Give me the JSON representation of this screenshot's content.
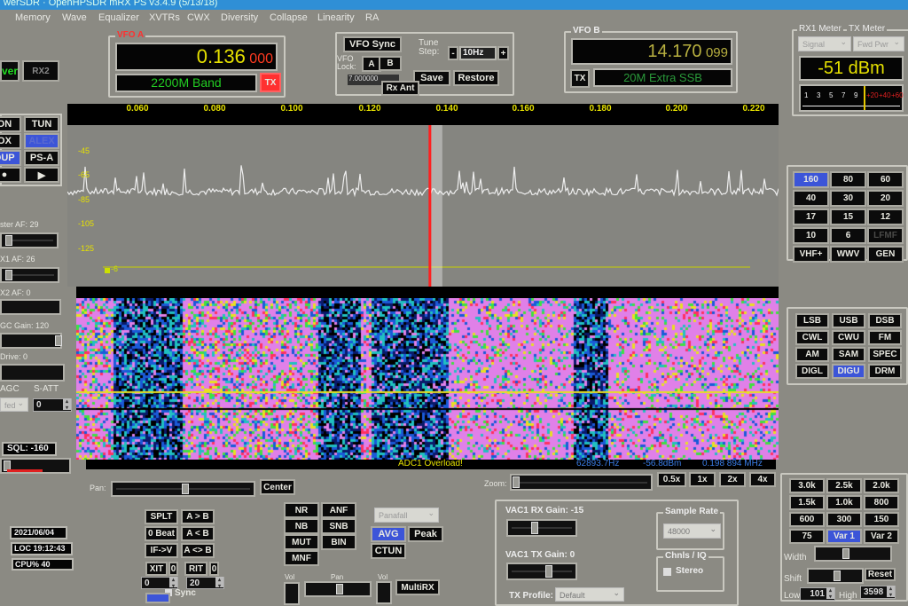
{
  "window": {
    "title": "werSDR · OpenHPSDR mRX PS v3.4.9 (5/13/18)"
  },
  "menu": [
    "Memory",
    "Wave",
    "Equalizer",
    "XVTRs",
    "CWX",
    "Diversity",
    "Collapse",
    "Linearity",
    "RA"
  ],
  "left": {
    "power": "ver",
    "rx2": "RX2",
    "buttons": [
      "ON",
      "TUN",
      "OX",
      "ALEX",
      "DUP",
      "PS-A",
      "●",
      "▶"
    ],
    "master_af": "ster AF:  29",
    "rx1_af": "X1 AF:  26",
    "rx2_af": "X2 AF:  0",
    "agc_gain": "GC Gain:  120",
    "drive": "Drive:  0",
    "agc": "AGC",
    "satt": "S-ATT",
    "agc_mode": "fed",
    "satt_value": "0",
    "sql": "SQL: -160"
  },
  "vfo_a": {
    "label": "VFO A",
    "freq_main": "0.136",
    "freq_sub": "000",
    "band": "2200M Band",
    "tx": "TX"
  },
  "vfo_sync": {
    "sync": "VFO Sync",
    "lock_label": "VFO Lock:",
    "a": "A",
    "b": "B",
    "tune_step_label": "Tune Step:",
    "tune_step": "10Hz",
    "minus": "-",
    "plus": "+",
    "freq_field": "7.000000",
    "save": "Save",
    "restore": "Restore",
    "rx_ant": "Rx Ant"
  },
  "vfo_b": {
    "label": "VFO B",
    "freq_main": "14.170",
    "freq_sub": "099",
    "tx": "TX",
    "band": "20M Extra SSB"
  },
  "meter": {
    "rx1_label": "RX1 Meter",
    "tx_label": "TX Meter",
    "rx1_mode": "Signal",
    "tx_mode": "Fwd Pwr",
    "reading": "-51 dBm",
    "scale": [
      "1",
      "3",
      "5",
      "7",
      "9",
      "+20",
      "+40",
      "+60"
    ],
    "needle_fraction": 0.62
  },
  "spectrum": {
    "x_ticks": [
      "0.060",
      "0.080",
      "0.100",
      "0.120",
      "0.140",
      "0.160",
      "0.180",
      "0.200",
      "0.220"
    ],
    "y_ticks": [
      "-45",
      "-65",
      "-85",
      "-105",
      "-125"
    ],
    "marker_label": "-6",
    "tuned_mhz": 0.136
  },
  "status": {
    "overload": "ADC1 Overload!",
    "cursor_freq": "62893.7Hz",
    "cursor_level": "-56.8dBm",
    "cursor_mhz": "0.198 894 MHz"
  },
  "bands": [
    [
      "160",
      "80",
      "60"
    ],
    [
      "40",
      "30",
      "20"
    ],
    [
      "17",
      "15",
      "12"
    ],
    [
      "10",
      "6",
      "LFMF"
    ],
    [
      "VHF+",
      "WWV",
      "GEN"
    ]
  ],
  "band_selected": "160",
  "modes": [
    [
      "LSB",
      "USB",
      "DSB"
    ],
    [
      "CWL",
      "CWU",
      "FM"
    ],
    [
      "AM",
      "SAM",
      "SPEC"
    ],
    [
      "DIGL",
      "DIGU",
      "DRM"
    ]
  ],
  "mode_selected": "DIGU",
  "filters": [
    [
      "3.0k",
      "2.5k",
      "2.0k"
    ],
    [
      "1.5k",
      "1.0k",
      "800"
    ],
    [
      "600",
      "300",
      "150"
    ],
    [
      "75",
      "Var 1",
      "Var 2"
    ]
  ],
  "filter_selected": "Var 1",
  "filter_ctrl": {
    "width": "Width",
    "shift": "Shift",
    "reset": "Reset",
    "low": "Low",
    "low_val": "101",
    "high": "High",
    "high_val": "3598"
  },
  "pan": {
    "label": "Pan:",
    "center": "Center"
  },
  "zoom": {
    "label": "Zoom:",
    "buttons": [
      "0.5x",
      "1x",
      "2x",
      "4x"
    ]
  },
  "info": {
    "date": "2021/06/04",
    "time": "LOC 19:12:43",
    "cpu": "CPU%  40"
  },
  "vfo_ops": [
    [
      "SPLT",
      "A > B"
    ],
    [
      "0 Beat",
      "A < B"
    ],
    [
      "IF->V",
      "A <> B"
    ]
  ],
  "xit": {
    "label": "XIT",
    "val": "0",
    "spin": "0"
  },
  "rit": {
    "label": "RIT",
    "val": "0",
    "spin": "20"
  },
  "sync": "Sync",
  "dsp": [
    [
      "NR",
      "ANF"
    ],
    [
      "NB",
      "SNB"
    ],
    [
      "MUT",
      "BIN"
    ],
    [
      "MNF",
      ""
    ]
  ],
  "display": {
    "mode": "Panafall",
    "avg": "AVG",
    "peak": "Peak",
    "ctun": "CTUN"
  },
  "audio": {
    "vol": "Vol",
    "pan": "Pan",
    "vol2": "Vol",
    "multirx": "MultiRX"
  },
  "vac": {
    "rx_gain": "VAC1  RX Gain:  -15",
    "tx_gain": "VAC1  TX Gain:  0",
    "sample_rate_label": "Sample Rate",
    "sample_rate": "48000",
    "chnls_label": "Chnls / IQ",
    "stereo": "Stereo",
    "tx_profile_label": "TX Profile:",
    "tx_profile": "Default"
  },
  "colors": {
    "tx_red": "#ff3030",
    "selected_blue": "#3c55d8",
    "freq_yellow": "#e6e100",
    "band_green": "#22cc22",
    "waterfall_bg": "#e080e8"
  }
}
